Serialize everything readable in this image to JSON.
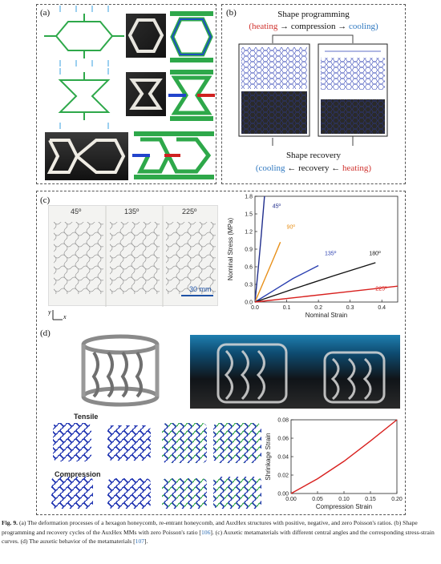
{
  "panel_a": {
    "label": "(a)"
  },
  "panel_b": {
    "label": "(b)",
    "title": "Shape programming",
    "programming_steps": [
      "(heating",
      "compression",
      "cooling)"
    ],
    "recovery_title": "Shape recovery",
    "recovery_steps": [
      "(cooling",
      "recovery",
      "heating)"
    ]
  },
  "panel_c": {
    "label": "(c)",
    "photo_angles": [
      "45º",
      "135º",
      "225º"
    ],
    "scale_bar": "30 mm",
    "axis_y_letter": "y",
    "axis_x_letter": "x"
  },
  "panel_d": {
    "label": "(d)",
    "tensile_label": "Tensile",
    "compression_label": "Compression"
  },
  "chart_data": [
    {
      "type": "line",
      "xlabel": "Nominal Strain",
      "ylabel": "Nominal  Stress (MPa)",
      "xlim": [
        0.0,
        0.45
      ],
      "ylim": [
        0.0,
        1.8
      ],
      "xticks": [
        "0.0",
        "0.1",
        "0.2",
        "0.3",
        "0.4"
      ],
      "yticks": [
        "0.0",
        "0.3",
        "0.6",
        "0.9",
        "1.2",
        "1.5",
        "1.8"
      ],
      "series": [
        {
          "name": "45º",
          "color": "#1f2d8c",
          "x": [
            0,
            0.01,
            0.02,
            0.03
          ],
          "y": [
            0,
            0.55,
            1.15,
            1.8
          ]
        },
        {
          "name": "90º",
          "color": "#e8901a",
          "x": [
            0,
            0.03,
            0.06,
            0.08
          ],
          "y": [
            0,
            0.38,
            0.76,
            1.02
          ]
        },
        {
          "name": "135º",
          "color": "#2a3fb0",
          "x": [
            0,
            0.06,
            0.12,
            0.2
          ],
          "y": [
            0,
            0.2,
            0.4,
            0.62
          ]
        },
        {
          "name": "180º",
          "color": "#111111",
          "x": [
            0,
            0.12,
            0.25,
            0.38
          ],
          "y": [
            0,
            0.22,
            0.45,
            0.67
          ]
        },
        {
          "name": "225º",
          "color": "#d8201e",
          "x": [
            0,
            0.15,
            0.3,
            0.45
          ],
          "y": [
            0,
            0.09,
            0.18,
            0.27
          ]
        }
      ]
    },
    {
      "type": "line",
      "xlabel": "Compression Strain",
      "ylabel": "Shrinkage Strain",
      "xlim": [
        0.0,
        0.2
      ],
      "ylim": [
        0.0,
        0.08
      ],
      "xticks": [
        "0.00",
        "0.05",
        "0.10",
        "0.15",
        "0.20"
      ],
      "yticks": [
        "0.00",
        "0.02",
        "0.04",
        "0.06",
        "0.08"
      ],
      "series": [
        {
          "color": "#d8201e",
          "x": [
            0,
            0.05,
            0.1,
            0.15,
            0.2
          ],
          "y": [
            0,
            0.016,
            0.035,
            0.057,
            0.081
          ]
        }
      ]
    }
  ],
  "caption": {
    "fig": "Fig. 9.",
    "text_1": " (a) The deformation processes of a hexagon honeycomb, re-entrant honeycomb, and AuxHex structures with positive, negative, and zero Poisson's ratios. (b) Shape programming and recovery cycles of the AuxHex MMs with zero Poisson's ratio [",
    "ref_1": "106",
    "text_2": "]. (c) Auxetic metamaterials with different central angles and the corresponding stress-strain curves. (d) The auxetic behavior of the metamaterials [",
    "ref_2": "107",
    "text_3": "]."
  },
  "colors": {
    "accent_red": "#d0322e",
    "accent_blue": "#2f78c0",
    "honeycomb_green": "#2ea84a"
  }
}
